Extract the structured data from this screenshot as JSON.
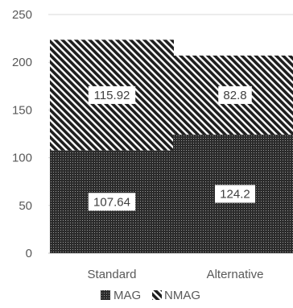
{
  "chart_data": {
    "type": "bar",
    "stacked": true,
    "categories": [
      "Standard",
      "Alternative"
    ],
    "series": [
      {
        "name": "MAG",
        "values": [
          107.64,
          124.2
        ],
        "labels": [
          "107.64",
          "124.2"
        ],
        "pattern": "dense-dots"
      },
      {
        "name": "NMAG",
        "values": [
          115.92,
          82.8
        ],
        "labels": [
          "115.92",
          "82.8"
        ],
        "pattern": "diagonal-stripes"
      }
    ],
    "ylim": [
      0,
      250
    ],
    "yticks": [
      "0",
      "50",
      "100",
      "150",
      "200",
      "250"
    ],
    "ytick_values": [
      0,
      50,
      100,
      150,
      200,
      250
    ],
    "grid": true,
    "legend_position": "bottom",
    "colors": {
      "bar": "#1a1a1a",
      "gridline": "#d9d9d9",
      "text": "#595959"
    }
  }
}
